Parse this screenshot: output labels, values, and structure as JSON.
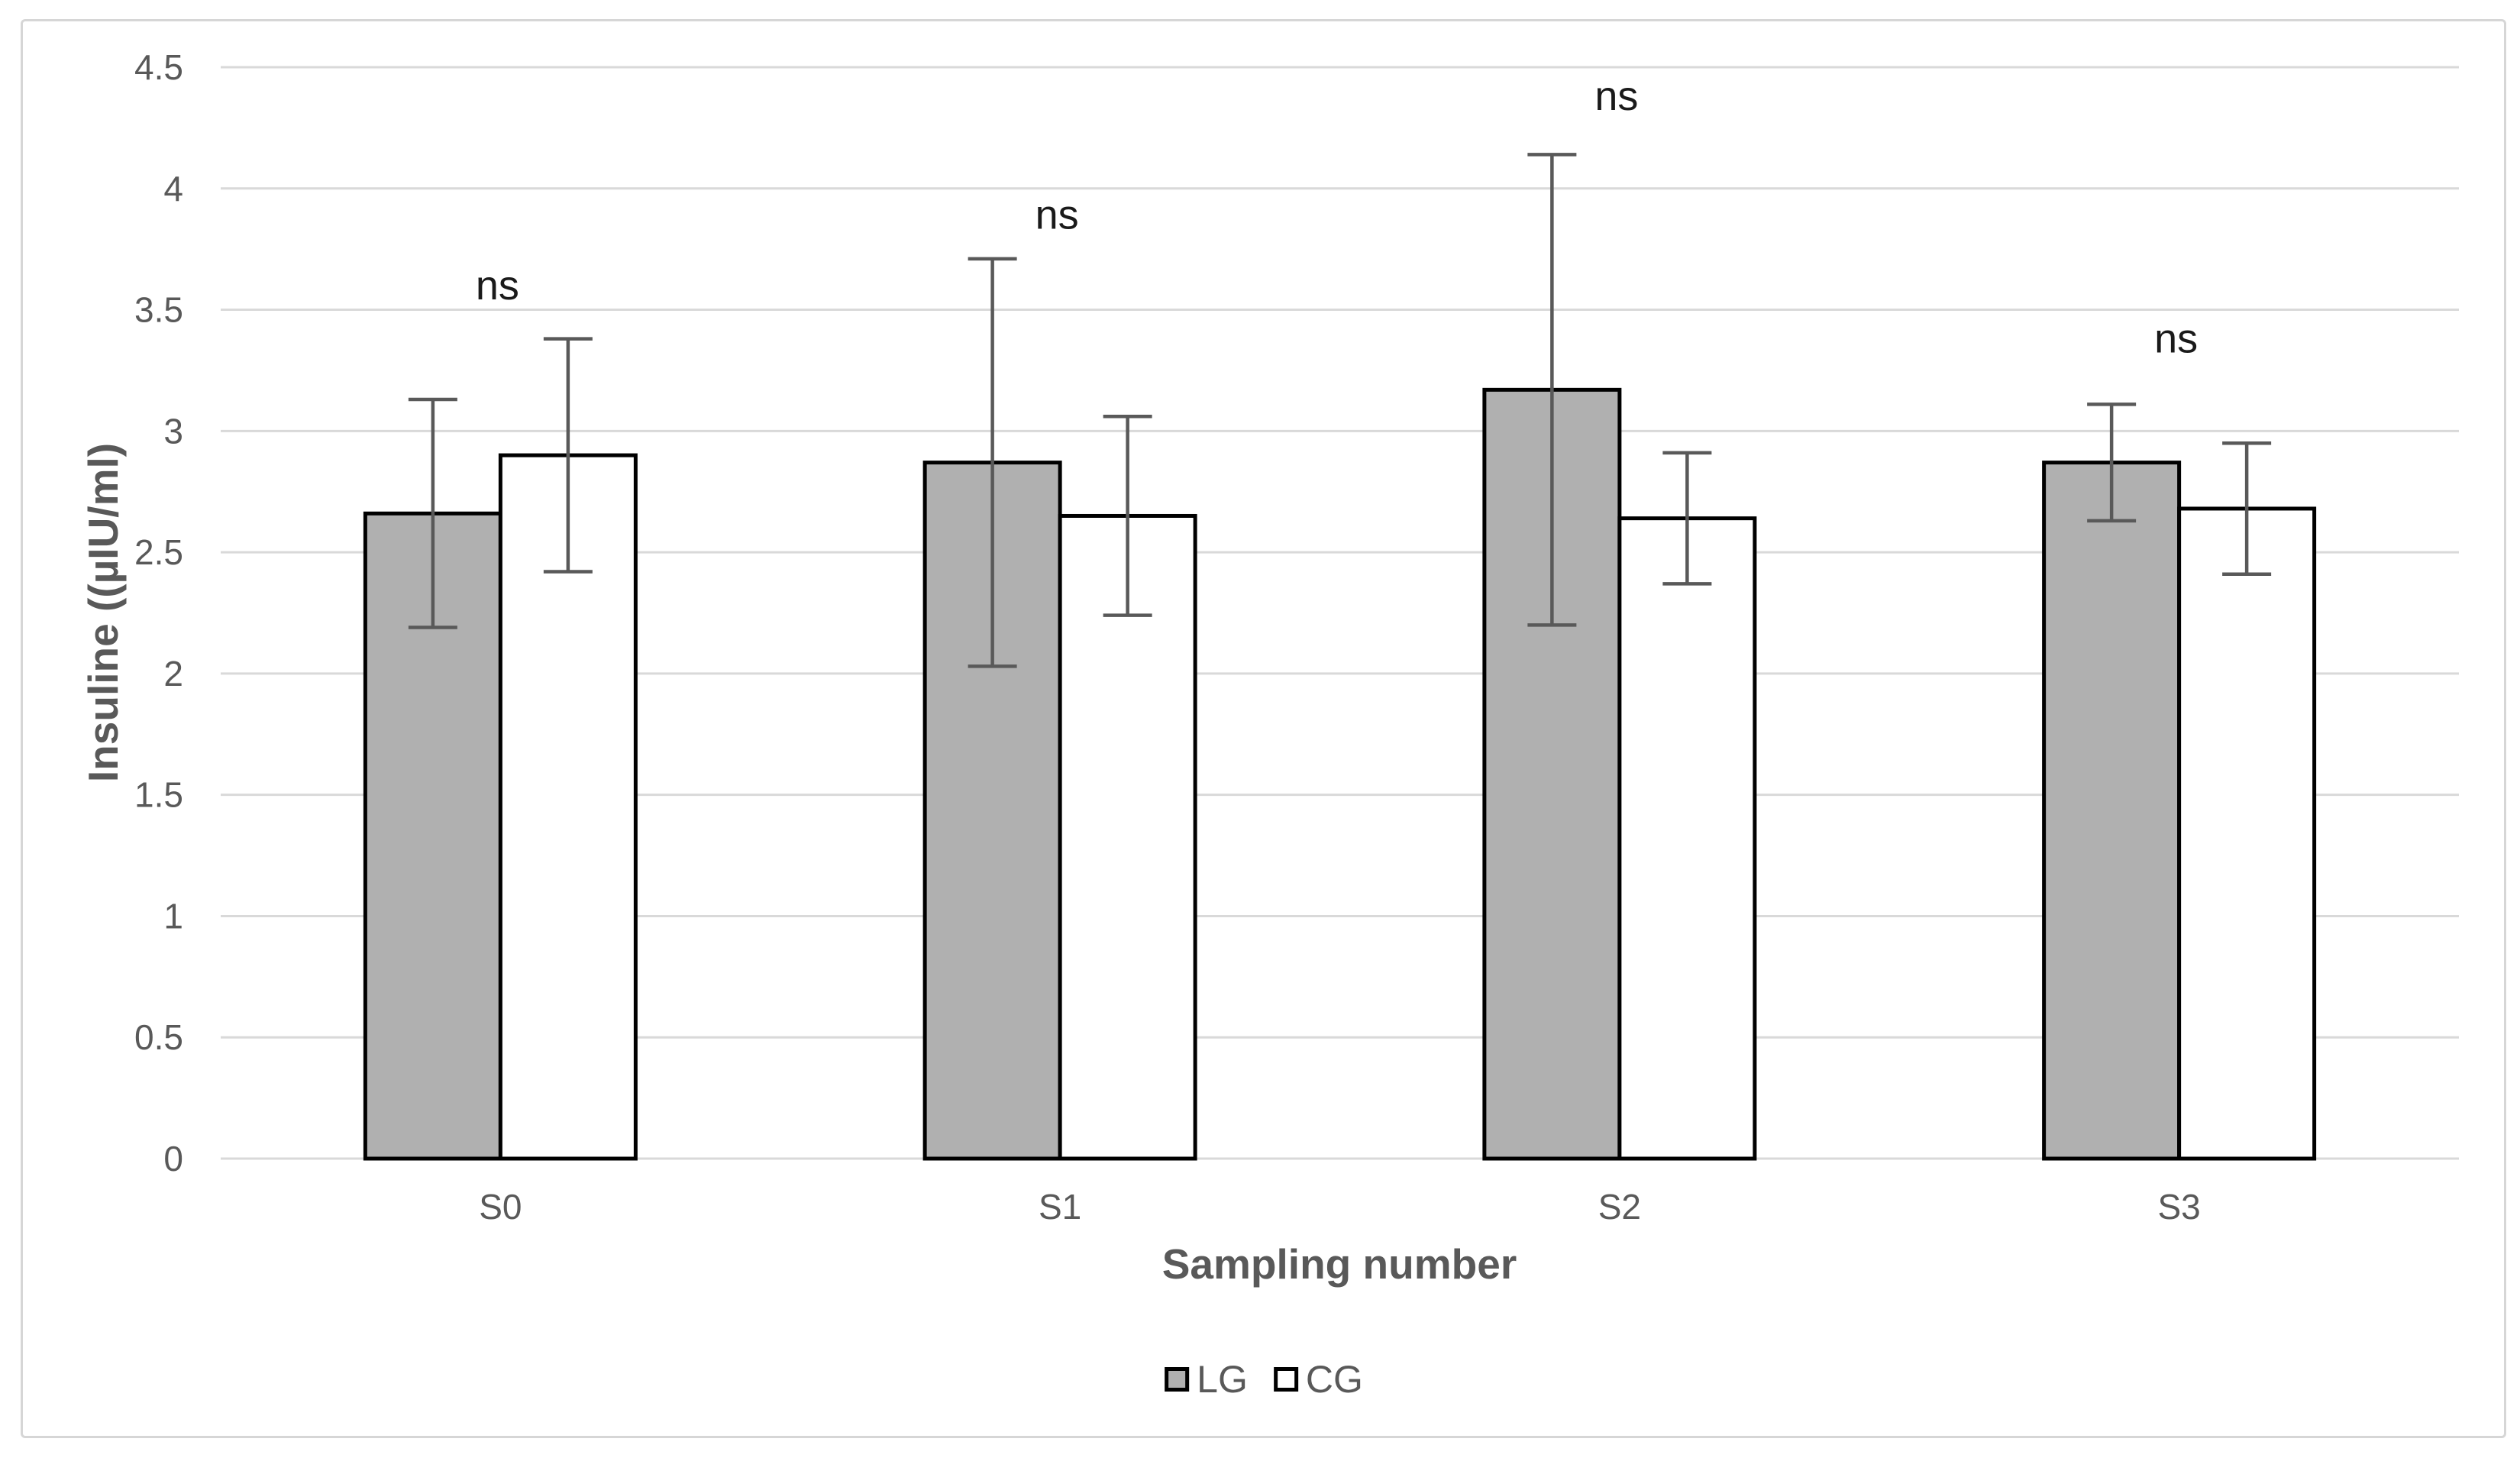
{
  "chart_data": {
    "type": "bar",
    "title": "",
    "categories": [
      "S0",
      "S1",
      "S2",
      "S3"
    ],
    "series": [
      {
        "name": "LG",
        "fill": "#b0b0b0",
        "values": [
          2.66,
          2.87,
          3.17,
          2.87
        ],
        "errors": [
          0.47,
          0.84,
          0.97,
          0.24
        ]
      },
      {
        "name": "CG",
        "fill": "#ffffff",
        "values": [
          2.9,
          2.65,
          2.64,
          2.68
        ],
        "errors": [
          0.48,
          0.41,
          0.27,
          0.27
        ]
      }
    ],
    "annotations": [
      {
        "text": "ns",
        "category_index": 0,
        "y": 3.6
      },
      {
        "text": "ns",
        "category_index": 1,
        "y": 3.89
      },
      {
        "text": "ns",
        "category_index": 2,
        "y": 4.38
      },
      {
        "text": "ns",
        "category_index": 3,
        "y": 3.38
      }
    ],
    "xlabel": "Sampling number",
    "ylabel": "Insuline ((µIU/ml)",
    "ylim": [
      0,
      4.5
    ],
    "ytick_step": 0.5,
    "yticks": [
      "0",
      "0.5",
      "1",
      "1.5",
      "2",
      "2.5",
      "3",
      "3.5",
      "4",
      "4.5"
    ],
    "grid": true,
    "legend_position": "bottom-center",
    "error_bars": "both-directions"
  },
  "axes": {
    "x_title": "Sampling number",
    "y_title": "Insuline ((µIU/ml)"
  },
  "legend": {
    "items": [
      {
        "label": "LG",
        "swatch": "#b0b0b0"
      },
      {
        "label": "CG",
        "swatch": "#ffffff"
      }
    ]
  },
  "styles": {
    "grid_color": "#d9d9d9",
    "axis_line_color": "#d9d9d9",
    "bar_border_color": "#000000",
    "error_bar_color": "#595959",
    "tick_text_color": "#595959",
    "ns_text_color": "#1a1a1a",
    "frame_border_color": "#d6d6d6",
    "background": "#ffffff"
  }
}
